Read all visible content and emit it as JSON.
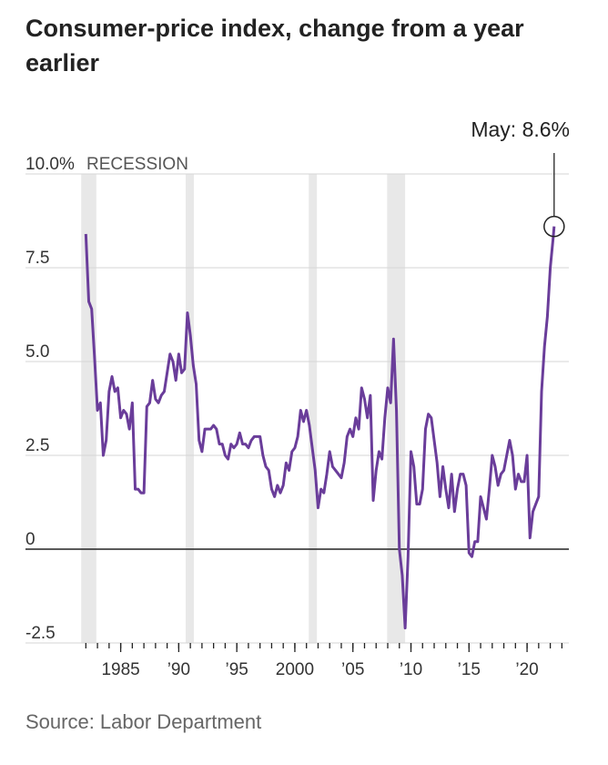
{
  "chart_data": {
    "type": "line",
    "title": "Consumer-price index, change from a year earlier",
    "source": "Source: Labor Department",
    "recession_label": "RECESSION",
    "annotation": "May: 8.6%",
    "recessions": [
      [
        1981.6,
        1982.9
      ],
      [
        1990.6,
        1991.3
      ],
      [
        2001.2,
        2001.9
      ],
      [
        2007.95,
        2009.5
      ]
    ],
    "xlim": [
      1976.8,
      2023.6
    ],
    "ylim": [
      -2.5,
      10
    ],
    "yticks": [
      {
        "value": -2.5,
        "label": "-2.5"
      },
      0,
      2.5,
      {
        "value": 5,
        "label": "5.0"
      },
      7.5,
      {
        "value": 10,
        "label": "10.0%"
      }
    ],
    "xticks": [
      1985,
      {
        "value": 1990,
        "label": "’90"
      },
      {
        "value": 1995,
        "label": "’95"
      },
      2000,
      {
        "value": 2005,
        "label": "’05"
      },
      {
        "value": 2010,
        "label": "’10"
      },
      {
        "value": 2015,
        "label": "’15"
      },
      {
        "value": 2020,
        "label": "’20"
      }
    ],
    "xticks_minor": [
      1982,
      1983,
      1984,
      1985,
      1986,
      1987,
      1988,
      1989,
      1990,
      1991,
      1992,
      1993,
      1994,
      1995,
      1996,
      1997,
      1998,
      1999,
      2000,
      2001,
      2002,
      2003,
      2004,
      2005,
      2006,
      2007,
      2008,
      2009,
      2010,
      2011,
      2012,
      2013,
      2014,
      2015,
      2016,
      2017,
      2018,
      2019,
      2020,
      2021,
      2022,
      2023
    ],
    "series": [
      {
        "name": "CPI",
        "color": "#6a3d9a",
        "x": [
          1982,
          1982.25,
          1982.5,
          1982.75,
          1983,
          1983.25,
          1983.5,
          1983.75,
          1984,
          1984.25,
          1984.5,
          1984.75,
          1985,
          1985.25,
          1985.5,
          1985.75,
          1986,
          1986.25,
          1986.5,
          1986.75,
          1987,
          1987.25,
          1987.5,
          1987.75,
          1988,
          1988.25,
          1988.5,
          1988.75,
          1989,
          1989.25,
          1989.5,
          1989.75,
          1990,
          1990.25,
          1990.5,
          1990.75,
          1991,
          1991.25,
          1991.5,
          1991.75,
          1992,
          1992.25,
          1992.5,
          1992.75,
          1993,
          1993.25,
          1993.5,
          1993.75,
          1994,
          1994.25,
          1994.5,
          1994.75,
          1995,
          1995.25,
          1995.5,
          1995.75,
          1996,
          1996.25,
          1996.5,
          1996.75,
          1997,
          1997.25,
          1997.5,
          1997.75,
          1998,
          1998.25,
          1998.5,
          1998.75,
          1999,
          1999.25,
          1999.5,
          1999.75,
          2000,
          2000.25,
          2000.5,
          2000.75,
          2001,
          2001.25,
          2001.5,
          2001.75,
          2002,
          2002.25,
          2002.5,
          2002.75,
          2003,
          2003.25,
          2003.5,
          2003.75,
          2004,
          2004.25,
          2004.5,
          2004.75,
          2005,
          2005.25,
          2005.5,
          2005.75,
          2006,
          2006.25,
          2006.5,
          2006.75,
          2007,
          2007.25,
          2007.5,
          2007.75,
          2008,
          2008.25,
          2008.5,
          2008.75,
          2009,
          2009.25,
          2009.5,
          2009.75,
          2010,
          2010.25,
          2010.5,
          2010.75,
          2011,
          2011.25,
          2011.5,
          2011.75,
          2012,
          2012.25,
          2012.5,
          2012.75,
          2013,
          2013.25,
          2013.5,
          2013.75,
          2014,
          2014.25,
          2014.5,
          2014.75,
          2015,
          2015.25,
          2015.5,
          2015.75,
          2016,
          2016.25,
          2016.5,
          2016.75,
          2017,
          2017.25,
          2017.5,
          2017.75,
          2018,
          2018.25,
          2018.5,
          2018.75,
          2019,
          2019.25,
          2019.5,
          2019.75,
          2020,
          2020.25,
          2020.5,
          2020.75,
          2021,
          2021.25,
          2021.5,
          2021.75,
          2022,
          2022.25,
          2022.33
        ],
        "values": [
          8.4,
          6.6,
          6.4,
          5.1,
          3.7,
          3.9,
          2.5,
          2.9,
          4.2,
          4.6,
          4.2,
          4.3,
          3.5,
          3.7,
          3.6,
          3.2,
          3.9,
          1.6,
          1.6,
          1.5,
          1.5,
          3.8,
          3.9,
          4.5,
          4.0,
          3.9,
          4.1,
          4.2,
          4.7,
          5.2,
          5.0,
          4.5,
          5.2,
          4.7,
          4.8,
          6.3,
          5.7,
          4.9,
          4.4,
          2.9,
          2.6,
          3.2,
          3.2,
          3.2,
          3.3,
          3.2,
          2.8,
          2.8,
          2.5,
          2.4,
          2.8,
          2.7,
          2.8,
          3.1,
          2.8,
          2.8,
          2.7,
          2.9,
          3.0,
          3.0,
          3.0,
          2.5,
          2.2,
          2.1,
          1.6,
          1.4,
          1.7,
          1.5,
          1.7,
          2.3,
          2.1,
          2.6,
          2.7,
          3.0,
          3.7,
          3.4,
          3.7,
          3.3,
          2.7,
          2.1,
          1.1,
          1.6,
          1.5,
          2.0,
          2.6,
          2.2,
          2.1,
          2.0,
          1.9,
          2.3,
          3.0,
          3.2,
          3.0,
          3.5,
          3.2,
          4.3,
          4.0,
          3.5,
          4.1,
          1.3,
          2.1,
          2.6,
          2.4,
          3.5,
          4.3,
          3.9,
          5.6,
          3.7,
          0.0,
          -0.7,
          -2.1,
          -0.2,
          2.6,
          2.2,
          1.2,
          1.2,
          1.6,
          3.2,
          3.6,
          3.5,
          2.9,
          2.3,
          1.4,
          2.2,
          1.6,
          1.1,
          2.0,
          1.0,
          1.6,
          2.0,
          2.0,
          1.7,
          -0.1,
          -0.2,
          0.2,
          0.2,
          1.4,
          1.1,
          0.8,
          1.6,
          2.5,
          2.2,
          1.7,
          2.0,
          2.1,
          2.5,
          2.9,
          2.5,
          1.6,
          2.0,
          1.8,
          1.8,
          2.5,
          0.3,
          1.0,
          1.2,
          1.4,
          4.2,
          5.4,
          6.2,
          7.5,
          8.3,
          8.6
        ]
      }
    ]
  }
}
